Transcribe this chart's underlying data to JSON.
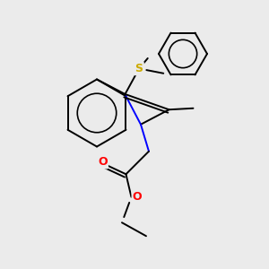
{
  "background_color": "#ebebeb",
  "atom_colors": {
    "C": "#000000",
    "N": "#0000ff",
    "O": "#ff0000",
    "S": "#ccaa00"
  },
  "figsize": [
    3.0,
    3.0
  ],
  "dpi": 100,
  "lw": 1.4
}
